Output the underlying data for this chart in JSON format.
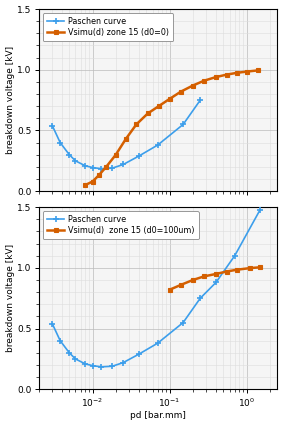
{
  "top": {
    "legend1": "Paschen curve",
    "legend2": "Vsimu(d) zone 15 (d0=0)",
    "paschen_x": [
      0.003,
      0.0038,
      0.005,
      0.006,
      0.008,
      0.01,
      0.013,
      0.018,
      0.025,
      0.04,
      0.07,
      0.15,
      0.25
    ],
    "paschen_y": [
      0.54,
      0.4,
      0.3,
      0.25,
      0.21,
      0.195,
      0.185,
      0.19,
      0.22,
      0.29,
      0.38,
      0.55,
      0.75
    ],
    "simu_x": [
      0.008,
      0.01,
      0.012,
      0.015,
      0.02,
      0.027,
      0.037,
      0.052,
      0.072,
      0.1,
      0.14,
      0.2,
      0.28,
      0.4,
      0.55,
      0.75,
      1.0,
      1.4
    ],
    "simu_y": [
      0.05,
      0.08,
      0.13,
      0.2,
      0.3,
      0.43,
      0.55,
      0.64,
      0.7,
      0.76,
      0.82,
      0.87,
      0.91,
      0.94,
      0.96,
      0.975,
      0.985,
      0.995
    ],
    "paschen_color": "#3c9eeb",
    "simu_color": "#d45f00",
    "xlim_log": [
      -2.7,
      0.4
    ],
    "ylim": [
      0.0,
      1.5
    ],
    "yticks": [
      0.0,
      0.5,
      1.0,
      1.5
    ],
    "ylabel": "breakdown voltage [kV]",
    "show_xlabel": false
  },
  "bottom": {
    "legend1": "Paschen curve",
    "legend2": "Vsimu(d)  zone 15 (d0=100um)",
    "paschen_x": [
      0.003,
      0.0038,
      0.005,
      0.006,
      0.008,
      0.01,
      0.013,
      0.018,
      0.025,
      0.04,
      0.07,
      0.15,
      0.25,
      0.4,
      0.7,
      1.5
    ],
    "paschen_y": [
      0.54,
      0.4,
      0.3,
      0.25,
      0.21,
      0.195,
      0.185,
      0.19,
      0.22,
      0.29,
      0.38,
      0.55,
      0.75,
      0.88,
      1.1,
      1.48
    ],
    "simu_x": [
      0.1,
      0.14,
      0.2,
      0.28,
      0.4,
      0.55,
      0.75,
      1.1,
      1.5
    ],
    "simu_y": [
      0.82,
      0.86,
      0.9,
      0.93,
      0.95,
      0.97,
      0.985,
      0.998,
      1.005
    ],
    "paschen_color": "#3c9eeb",
    "simu_color": "#d45f00",
    "xlim_log": [
      -2.7,
      0.4
    ],
    "ylim": [
      0.0,
      1.5
    ],
    "yticks": [
      0.0,
      0.5,
      1.0,
      1.5
    ],
    "ylabel": "breakdown voltage [kV]",
    "xlabel": "pd [bar.mm]",
    "show_xlabel": true
  },
  "bg_color": "#f5f5f5",
  "grid_color": "#bbbbbb",
  "grid_minor_color": "#dddddd"
}
